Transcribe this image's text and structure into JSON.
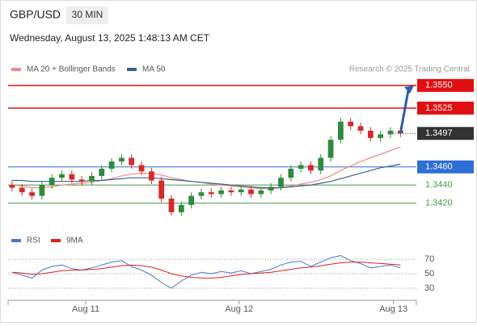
{
  "header": {
    "symbol": "GBP/USD",
    "timeframe": "30 MIN",
    "datetime": "Wednesday, August 13, 2025 1:48:13 AM CET"
  },
  "chart_data": {
    "type": "candlestick",
    "source": "Research © 2025 Trading Central",
    "xlim": [
      -0.4,
      40.6
    ],
    "xticks": [
      {
        "value": 7.4,
        "label": "Aug 11"
      },
      {
        "value": 22.8,
        "label": "Aug 12"
      },
      {
        "value": 38.3,
        "label": "Aug 13"
      }
    ],
    "ylim": [
      1.34,
      1.3565
    ],
    "up_color": "#2e8b3e",
    "down_color": "#d42a2a",
    "candles": {
      "open": [
        1.344,
        1.3437,
        1.3432,
        1.3428,
        1.344,
        1.3448,
        1.3452,
        1.3446,
        1.3444,
        1.345,
        1.3458,
        1.3466,
        1.347,
        1.3462,
        1.3455,
        1.3445,
        1.3425,
        1.341,
        1.3418,
        1.3428,
        1.3432,
        1.343,
        1.3434,
        1.3432,
        1.3435,
        1.343,
        1.3434,
        1.3438,
        1.3448,
        1.3458,
        1.3462,
        1.3456,
        1.347,
        1.349,
        1.351,
        1.3505,
        1.35,
        1.3492,
        1.3496,
        1.35
      ],
      "high": [
        1.3444,
        1.3441,
        1.3436,
        1.3444,
        1.3452,
        1.3456,
        1.3456,
        1.345,
        1.3454,
        1.3462,
        1.347,
        1.3474,
        1.3474,
        1.3466,
        1.3459,
        1.3449,
        1.3429,
        1.3422,
        1.3432,
        1.3436,
        1.3436,
        1.3438,
        1.3438,
        1.3439,
        1.3439,
        1.3438,
        1.3442,
        1.3452,
        1.3462,
        1.3466,
        1.3466,
        1.3474,
        1.3494,
        1.3514,
        1.3514,
        1.3509,
        1.3504,
        1.35,
        1.3504,
        1.3504
      ],
      "low": [
        1.3433,
        1.3428,
        1.3424,
        1.3424,
        1.3436,
        1.3444,
        1.3442,
        1.344,
        1.344,
        1.3446,
        1.3454,
        1.3462,
        1.3458,
        1.3451,
        1.3441,
        1.3421,
        1.3406,
        1.3406,
        1.3414,
        1.3424,
        1.3426,
        1.3426,
        1.3428,
        1.3428,
        1.3426,
        1.3426,
        1.343,
        1.3434,
        1.3444,
        1.3454,
        1.3452,
        1.3452,
        1.3466,
        1.3486,
        1.3501,
        1.3496,
        1.3488,
        1.3488,
        1.3492,
        1.3493
      ],
      "close": [
        1.3437,
        1.3432,
        1.3428,
        1.344,
        1.3448,
        1.3452,
        1.3446,
        1.3444,
        1.345,
        1.3458,
        1.3466,
        1.347,
        1.3462,
        1.3455,
        1.3445,
        1.3425,
        1.341,
        1.3418,
        1.3428,
        1.3432,
        1.343,
        1.3434,
        1.3432,
        1.3435,
        1.343,
        1.3434,
        1.3438,
        1.3448,
        1.3458,
        1.3462,
        1.3456,
        1.347,
        1.349,
        1.351,
        1.3505,
        1.35,
        1.3492,
        1.3496,
        1.35,
        1.3497
      ]
    },
    "series": [
      {
        "name": "MA 20 + Bollinger Bands",
        "color": "#f08a8a",
        "values": [
          1.344,
          1.3439,
          1.3437,
          1.3437,
          1.3438,
          1.344,
          1.3441,
          1.3442,
          1.3443,
          1.3445,
          1.3447,
          1.345,
          1.3452,
          1.3453,
          1.3453,
          1.3451,
          1.3448,
          1.3446,
          1.3444,
          1.3443,
          1.3441,
          1.344,
          1.3439,
          1.3438,
          1.3437,
          1.3436,
          1.3436,
          1.3437,
          1.3439,
          1.3441,
          1.3443,
          1.3446,
          1.345,
          1.3456,
          1.3461,
          1.3466,
          1.347,
          1.3474,
          1.3478,
          1.3482
        ]
      },
      {
        "name": "MA 50",
        "color": "#3c5f8f",
        "values": [
          1.3445,
          1.3445,
          1.3444,
          1.3444,
          1.3444,
          1.3444,
          1.3444,
          1.3444,
          1.3445,
          1.3445,
          1.3446,
          1.3447,
          1.3448,
          1.3448,
          1.3448,
          1.3447,
          1.3446,
          1.3445,
          1.3444,
          1.3443,
          1.3442,
          1.3441,
          1.344,
          1.3439,
          1.3438,
          1.3437,
          1.3437,
          1.3437,
          1.3438,
          1.3439,
          1.344,
          1.3442,
          1.3444,
          1.3447,
          1.345,
          1.3453,
          1.3456,
          1.3459,
          1.3461,
          1.3463
        ]
      }
    ],
    "levels": [
      {
        "value": 1.355,
        "label": "1.3550",
        "color": "#e01010",
        "line": "solid",
        "boxed": true
      },
      {
        "value": 1.3525,
        "label": "1.3525",
        "color": "#e01010",
        "line": "solid",
        "boxed": true
      },
      {
        "value": 1.3497,
        "label": "1.3497",
        "color": "#333333",
        "line": "dotted",
        "boxed": true
      },
      {
        "value": 1.346,
        "label": "1.3460",
        "color": "#2e6fd6",
        "line": "solid",
        "boxed": true
      },
      {
        "value": 1.344,
        "label": "1.3440",
        "color": "#4a9a4a",
        "line": "solid",
        "boxed": false
      },
      {
        "value": 1.342,
        "label": "1.3420",
        "color": "#4a9a4a",
        "line": "solid",
        "boxed": false
      }
    ],
    "rsi": {
      "ylim": [
        20,
        80
      ],
      "yticks": [
        70,
        50,
        30
      ],
      "series": [
        {
          "name": "RSI",
          "color": "#4a78c8",
          "values": [
            52,
            48,
            44,
            55,
            60,
            62,
            57,
            55,
            58,
            62,
            66,
            68,
            60,
            55,
            48,
            38,
            30,
            40,
            48,
            52,
            50,
            53,
            51,
            54,
            50,
            53,
            56,
            62,
            66,
            67,
            60,
            66,
            72,
            75,
            68,
            64,
            58,
            60,
            62,
            58
          ]
        },
        {
          "name": "9MA",
          "color": "#e02020",
          "values": [
            52,
            51,
            49,
            50,
            52,
            54,
            55,
            55,
            56,
            57,
            59,
            61,
            62,
            61,
            59,
            55,
            50,
            47,
            45,
            44,
            44,
            45,
            47,
            49,
            50,
            51,
            52,
            54,
            56,
            58,
            59,
            61,
            63,
            65,
            66,
            66,
            65,
            64,
            63,
            62
          ]
        }
      ]
    }
  }
}
